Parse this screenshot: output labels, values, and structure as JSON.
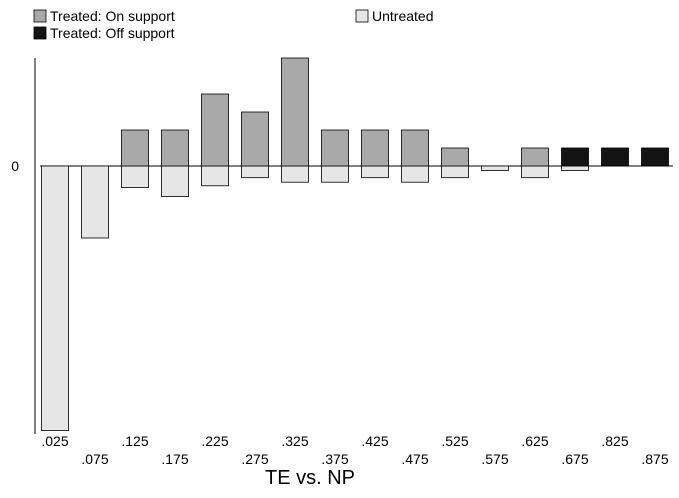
{
  "chart_data": {
    "type": "bar",
    "title": "",
    "xlabel": "TE vs. NP",
    "ylabel": "",
    "x_ticks": [
      ".025",
      ".075",
      ".125",
      ".175",
      ".225",
      ".275",
      ".325",
      ".375",
      ".425",
      ".475",
      ".525",
      ".575",
      ".625",
      ".675",
      ".825",
      ".875"
    ],
    "y_ticks": [
      "0"
    ],
    "legend": {
      "placement": "top",
      "entries": [
        {
          "name": "Treated: On support",
          "color": "#a9a9a9"
        },
        {
          "name": "Untreated",
          "color": "#e6e6e6"
        },
        {
          "name": "Treated: Off support",
          "color": "#141414"
        }
      ]
    },
    "ylim": [
      -15,
      6
    ],
    "grid": false,
    "series": [
      {
        "name": "Untreated",
        "color": "#e6e6e6",
        "bars": [
          {
            "x": ".025",
            "value": -14.7
          },
          {
            "x": ".075",
            "value": -4
          },
          {
            "x": ".125",
            "value": -1.2
          },
          {
            "x": ".175",
            "value": -1.7
          },
          {
            "x": ".225",
            "value": -1.1
          },
          {
            "x": ".275",
            "value": -0.65
          },
          {
            "x": ".325",
            "value": -0.9
          },
          {
            "x": ".375",
            "value": -0.9
          },
          {
            "x": ".425",
            "value": -0.65
          },
          {
            "x": ".475",
            "value": -0.9
          },
          {
            "x": ".525",
            "value": -0.65
          },
          {
            "x": ".575",
            "value": -0.25
          },
          {
            "x": ".625",
            "value": -0.65
          },
          {
            "x": ".675",
            "value": -0.25
          }
        ]
      },
      {
        "name": "Treated: On support",
        "color": "#a9a9a9",
        "bars": [
          {
            "x": ".125",
            "value": 2
          },
          {
            "x": ".175",
            "value": 2
          },
          {
            "x": ".225",
            "value": 4
          },
          {
            "x": ".275",
            "value": 3
          },
          {
            "x": ".325",
            "value": 6
          },
          {
            "x": ".375",
            "value": 2
          },
          {
            "x": ".425",
            "value": 2
          },
          {
            "x": ".475",
            "value": 2
          },
          {
            "x": ".525",
            "value": 1
          },
          {
            "x": ".625",
            "value": 1
          }
        ]
      },
      {
        "name": "Treated: Off support",
        "color": "#141414",
        "bars": [
          {
            "x": ".675",
            "value": 1
          },
          {
            "x": ".825",
            "value": 1
          },
          {
            "x": ".875",
            "value": 1
          }
        ]
      }
    ]
  }
}
